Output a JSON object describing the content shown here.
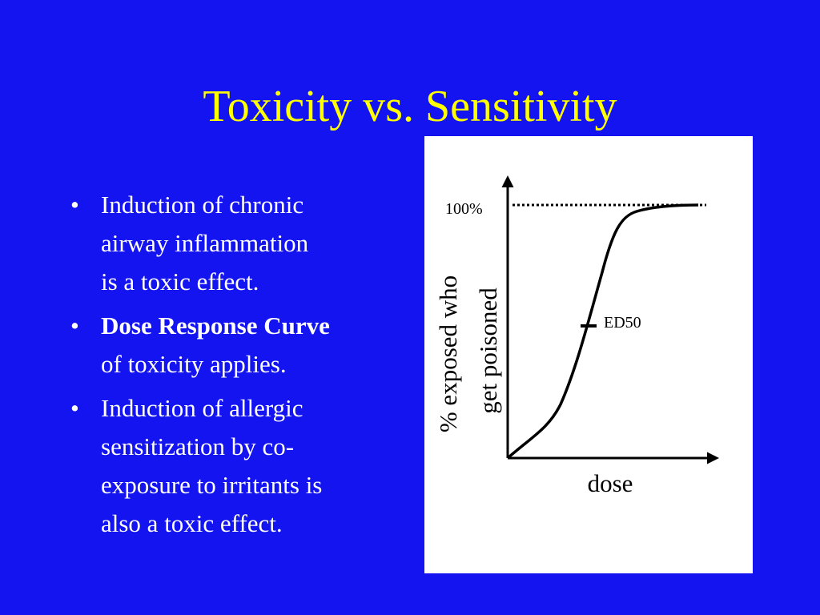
{
  "title": "Toxicity vs. Sensitivity",
  "bullets": [
    {
      "lines": [
        "Induction of chronic",
        "airway inflammation",
        "is a toxic effect."
      ]
    },
    {
      "lines": [
        "Dose Response Curve",
        "of toxicity applies."
      ]
    },
    {
      "lines": [
        "Induction of allergic",
        "sensitization by co-",
        "exposure to irritants is",
        "also a toxic effect."
      ]
    }
  ],
  "diagram": {
    "top_label": "100%",
    "midpoint_label": "ED50",
    "y_axis_label": [
      "% exposed who",
      "get poisoned"
    ],
    "x_axis_label": "dose"
  }
}
